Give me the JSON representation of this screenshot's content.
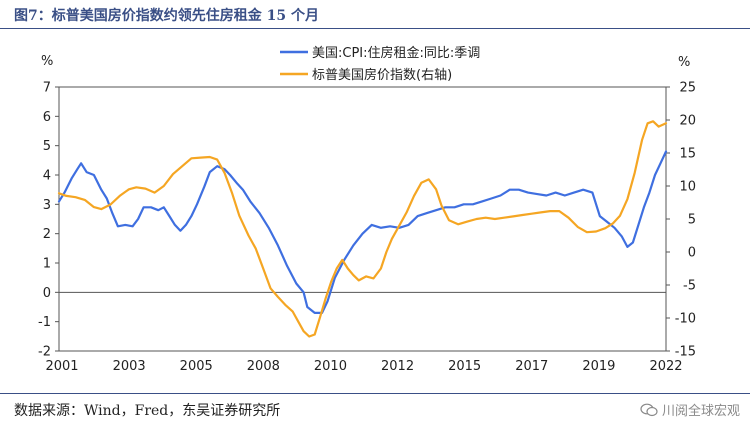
{
  "header": {
    "title": "图7：标普美国房价指数约领先住房租金 15 个月"
  },
  "footer": {
    "source": "数据来源：Wind，Fred，东吴证券研究所",
    "watermark": "川阅全球宏观",
    "watermark_icon": "wechat-icon"
  },
  "chart_data": {
    "type": "line",
    "title": "",
    "x_tick_labels": [
      "2001",
      "2003",
      "2005",
      "2008",
      "2010",
      "2012",
      "2015",
      "2017",
      "2019",
      "2022"
    ],
    "y_left": {
      "unit": "%",
      "ticks": [
        "7",
        "6",
        "5",
        "4",
        "3",
        "2",
        "1",
        "0",
        "-1",
        "-2"
      ],
      "ylim": [
        -2,
        7
      ]
    },
    "y_right": {
      "unit": "%",
      "ticks": [
        "25",
        "20",
        "15",
        "10",
        "5",
        "0",
        "-5",
        "-10",
        "-15"
      ],
      "ylim": [
        -15,
        25
      ]
    },
    "legend": {
      "placement": "top-center"
    },
    "series": [
      {
        "name": "美国:CPI:住房租金:同比:季调",
        "color": "#3f6fe0",
        "axis": "left",
        "points": [
          [
            0,
            3.1
          ],
          [
            0.15,
            3.4
          ],
          [
            0.35,
            3.9
          ],
          [
            0.5,
            4.2
          ],
          [
            0.6,
            4.4
          ],
          [
            0.75,
            4.1
          ],
          [
            0.95,
            4.0
          ],
          [
            1.15,
            3.5
          ],
          [
            1.3,
            3.2
          ],
          [
            1.45,
            2.7
          ],
          [
            1.6,
            2.25
          ],
          [
            1.8,
            2.3
          ],
          [
            2.0,
            2.25
          ],
          [
            2.15,
            2.5
          ],
          [
            2.3,
            2.9
          ],
          [
            2.5,
            2.9
          ],
          [
            2.7,
            2.8
          ],
          [
            2.85,
            2.9
          ],
          [
            3.0,
            2.6
          ],
          [
            3.15,
            2.3
          ],
          [
            3.3,
            2.1
          ],
          [
            3.45,
            2.3
          ],
          [
            3.6,
            2.6
          ],
          [
            3.75,
            3.0
          ],
          [
            3.95,
            3.6
          ],
          [
            4.1,
            4.1
          ],
          [
            4.3,
            4.3
          ],
          [
            4.5,
            4.2
          ],
          [
            4.65,
            4.0
          ],
          [
            4.85,
            3.7
          ],
          [
            5.0,
            3.5
          ],
          [
            5.2,
            3.1
          ],
          [
            5.45,
            2.7
          ],
          [
            5.7,
            2.2
          ],
          [
            5.95,
            1.6
          ],
          [
            6.2,
            0.9
          ],
          [
            6.45,
            0.3
          ],
          [
            6.65,
            0.0
          ],
          [
            6.75,
            -0.5
          ],
          [
            6.95,
            -0.7
          ],
          [
            7.15,
            -0.7
          ],
          [
            7.3,
            -0.3
          ],
          [
            7.5,
            0.5
          ],
          [
            7.75,
            1.1
          ],
          [
            8.0,
            1.6
          ],
          [
            8.25,
            2.0
          ],
          [
            8.5,
            2.3
          ],
          [
            8.75,
            2.2
          ],
          [
            9.0,
            2.25
          ],
          [
            9.25,
            2.2
          ],
          [
            9.5,
            2.3
          ],
          [
            9.75,
            2.6
          ],
          [
            10.0,
            2.7
          ],
          [
            10.25,
            2.8
          ],
          [
            10.5,
            2.9
          ],
          [
            10.75,
            2.9
          ],
          [
            11.0,
            3.0
          ],
          [
            11.25,
            3.0
          ],
          [
            11.5,
            3.1
          ],
          [
            11.75,
            3.2
          ],
          [
            12.0,
            3.3
          ],
          [
            12.25,
            3.5
          ],
          [
            12.5,
            3.5
          ],
          [
            12.75,
            3.4
          ],
          [
            13.0,
            3.35
          ],
          [
            13.25,
            3.3
          ],
          [
            13.5,
            3.4
          ],
          [
            13.75,
            3.3
          ],
          [
            14.0,
            3.4
          ],
          [
            14.25,
            3.5
          ],
          [
            14.5,
            3.4
          ],
          [
            14.7,
            2.6
          ],
          [
            14.9,
            2.4
          ],
          [
            15.1,
            2.2
          ],
          [
            15.3,
            1.9
          ],
          [
            15.45,
            1.55
          ],
          [
            15.6,
            1.7
          ],
          [
            15.75,
            2.3
          ],
          [
            15.9,
            2.9
          ],
          [
            16.05,
            3.4
          ],
          [
            16.2,
            4.0
          ],
          [
            16.35,
            4.4
          ],
          [
            16.5,
            4.8
          ]
        ]
      },
      {
        "name": "标普美国房价指数(右轴)",
        "color": "#f5a623",
        "axis": "right",
        "points": [
          [
            0,
            8.9
          ],
          [
            0.2,
            8.5
          ],
          [
            0.45,
            8.3
          ],
          [
            0.7,
            7.9
          ],
          [
            0.95,
            6.8
          ],
          [
            1.15,
            6.5
          ],
          [
            1.4,
            7.2
          ],
          [
            1.65,
            8.5
          ],
          [
            1.9,
            9.5
          ],
          [
            2.1,
            9.8
          ],
          [
            2.35,
            9.6
          ],
          [
            2.6,
            9.0
          ],
          [
            2.85,
            10.0
          ],
          [
            3.1,
            11.8
          ],
          [
            3.35,
            13.0
          ],
          [
            3.6,
            14.2
          ],
          [
            3.85,
            14.3
          ],
          [
            4.1,
            14.4
          ],
          [
            4.3,
            14.0
          ],
          [
            4.5,
            12.0
          ],
          [
            4.7,
            9.0
          ],
          [
            4.9,
            5.5
          ],
          [
            5.15,
            2.5
          ],
          [
            5.35,
            0.5
          ],
          [
            5.55,
            -2.5
          ],
          [
            5.75,
            -5.5
          ],
          [
            5.95,
            -6.8
          ],
          [
            6.15,
            -8.0
          ],
          [
            6.35,
            -9.0
          ],
          [
            6.5,
            -10.5
          ],
          [
            6.65,
            -12.0
          ],
          [
            6.8,
            -12.8
          ],
          [
            6.95,
            -12.5
          ],
          [
            7.1,
            -9.8
          ],
          [
            7.25,
            -7.0
          ],
          [
            7.4,
            -4.5
          ],
          [
            7.55,
            -2.5
          ],
          [
            7.7,
            -1.2
          ],
          [
            7.85,
            -2.5
          ],
          [
            8.0,
            -3.5
          ],
          [
            8.15,
            -4.3
          ],
          [
            8.35,
            -3.7
          ],
          [
            8.55,
            -4.0
          ],
          [
            8.75,
            -2.5
          ],
          [
            8.9,
            0.0
          ],
          [
            9.05,
            2.0
          ],
          [
            9.25,
            4.0
          ],
          [
            9.45,
            6.0
          ],
          [
            9.65,
            8.5
          ],
          [
            9.85,
            10.5
          ],
          [
            10.05,
            11.0
          ],
          [
            10.25,
            9.5
          ],
          [
            10.4,
            7.0
          ],
          [
            10.6,
            4.8
          ],
          [
            10.85,
            4.2
          ],
          [
            11.1,
            4.6
          ],
          [
            11.35,
            5.0
          ],
          [
            11.6,
            5.2
          ],
          [
            11.85,
            5.0
          ],
          [
            12.1,
            5.2
          ],
          [
            12.35,
            5.4
          ],
          [
            12.6,
            5.6
          ],
          [
            12.85,
            5.8
          ],
          [
            13.1,
            6.0
          ],
          [
            13.35,
            6.2
          ],
          [
            13.6,
            6.2
          ],
          [
            13.85,
            5.2
          ],
          [
            14.1,
            3.8
          ],
          [
            14.35,
            3.0
          ],
          [
            14.6,
            3.1
          ],
          [
            14.85,
            3.6
          ],
          [
            15.05,
            4.3
          ],
          [
            15.25,
            5.5
          ],
          [
            15.45,
            8.0
          ],
          [
            15.65,
            12.0
          ],
          [
            15.85,
            17.0
          ],
          [
            16.0,
            19.5
          ],
          [
            16.15,
            19.8
          ],
          [
            16.3,
            19.0
          ],
          [
            16.5,
            19.5
          ]
        ]
      }
    ]
  }
}
